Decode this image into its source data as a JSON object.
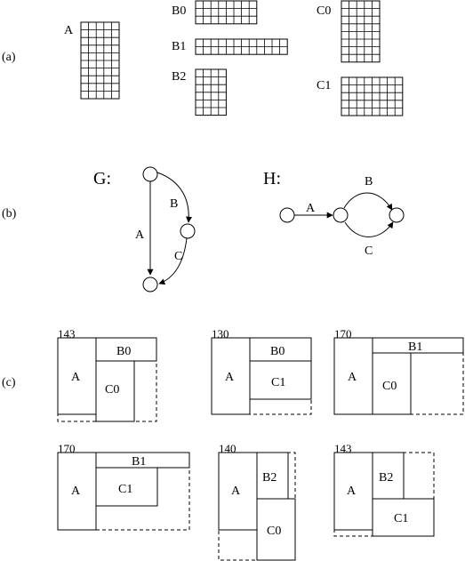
{
  "panels": {
    "a": "(a)",
    "b": "(b)",
    "c": "(c)"
  },
  "matrices": {
    "A": "A",
    "B0": "B0",
    "B1": "B1",
    "B2": "B2",
    "C0": "C0",
    "C1": "C1"
  },
  "graphs": {
    "G": {
      "title": "G:",
      "edge_a": "A",
      "edge_b": "B",
      "edge_c": "C"
    },
    "H": {
      "title": "H:",
      "edge_a": "A",
      "edge_b": "B",
      "edge_c": "C"
    }
  },
  "packings": [
    {
      "cost": "143",
      "a": "A",
      "b": "B0",
      "c": "C0"
    },
    {
      "cost": "130",
      "a": "A",
      "b": "B0",
      "c": "C1"
    },
    {
      "cost": "170",
      "a": "A",
      "b": "B1",
      "c": "C0"
    },
    {
      "cost": "170",
      "a": "A",
      "b": "B1",
      "c": "C1"
    },
    {
      "cost": "140",
      "a": "A",
      "b": "B2",
      "c": "C0"
    },
    {
      "cost": "143",
      "a": "A",
      "b": "B2",
      "c": "C1"
    }
  ]
}
